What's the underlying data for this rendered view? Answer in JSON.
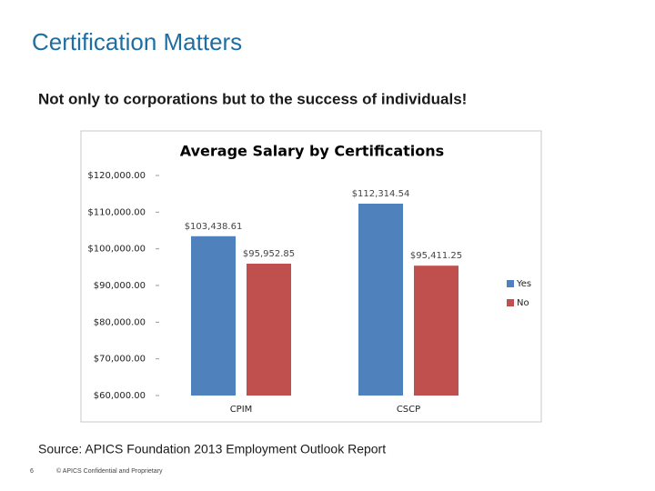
{
  "slide": {
    "title": "Certification Matters",
    "subtitle": "Not only to corporations but to the success of individuals!",
    "source": "Source:  APICS Foundation 2013 Employment Outlook Report",
    "page_number": "6",
    "footer": "© APICS Confidential and Proprietary"
  },
  "chart_data": {
    "type": "bar",
    "title": "Average Salary by Certifications",
    "categories": [
      "CPIM",
      "CSCP"
    ],
    "series": [
      {
        "name": "Yes",
        "color": "#4f81bd",
        "values": [
          103438.61,
          112314.54
        ],
        "value_labels": [
          "$103,438.61",
          "$112,314.54"
        ]
      },
      {
        "name": "No",
        "color": "#c0504d",
        "values": [
          95952.85,
          95411.25
        ],
        "value_labels": [
          "$95,952.85",
          "$95,411.25"
        ]
      }
    ],
    "ylim": [
      60000,
      120000
    ],
    "yticks": [
      {
        "value": 60000,
        "label": "$60,000.00"
      },
      {
        "value": 70000,
        "label": "$70,000.00"
      },
      {
        "value": 80000,
        "label": "$80,000.00"
      },
      {
        "value": 90000,
        "label": "$90,000.00"
      },
      {
        "value": 100000,
        "label": "$100,000.00"
      },
      {
        "value": 110000,
        "label": "$110,000.00"
      },
      {
        "value": 120000,
        "label": "$120,000.00"
      }
    ],
    "grid": false,
    "legend": "right"
  }
}
